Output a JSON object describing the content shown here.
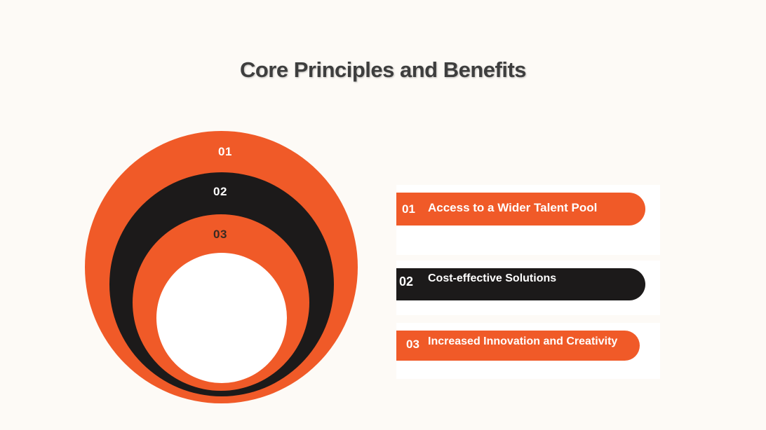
{
  "title": "Core Principles and Benefits",
  "colors": {
    "background": "#fdfaf6",
    "accent_orange": "#f05a28",
    "dark": "#1c1a1a",
    "white": "#ffffff",
    "title_text": "#3e3e3e"
  },
  "rings": [
    {
      "number": "01"
    },
    {
      "number": "02"
    },
    {
      "number": "03"
    }
  ],
  "items": [
    {
      "number": "01",
      "label": "Access to a Wider Talent Pool"
    },
    {
      "number": "02",
      "label": "Cost-effective Solutions"
    },
    {
      "number": "03",
      "label": "Increased Innovation and Creativity"
    }
  ]
}
